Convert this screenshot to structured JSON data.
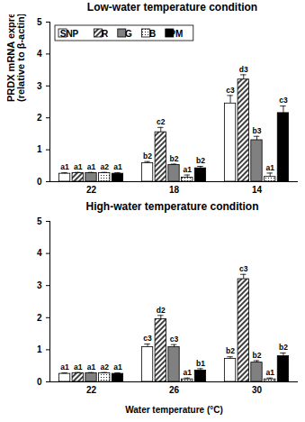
{
  "chart_data": [
    {
      "type": "bar",
      "title": "Low-water temperature condition",
      "categories": [
        "22",
        "18",
        "14"
      ],
      "y_label": "PRDX mRNA expression (relative to β-actin)",
      "ylim": [
        0,
        5
      ],
      "yticks": [
        0,
        1,
        2,
        3,
        4,
        5
      ],
      "grid": false,
      "legend": "upper left",
      "series": [
        {
          "name": "SNP",
          "color": "#ffffff",
          "values": [
            0.25,
            0.58,
            2.45
          ],
          "errors": [
            0.03,
            0.05,
            0.25
          ],
          "labels": [
            "a1",
            "b2",
            "c3"
          ]
        },
        {
          "name": "R",
          "color": "#ffffff",
          "values": [
            0.27,
            1.55,
            3.2
          ],
          "errors": [
            0.02,
            0.15,
            0.15
          ],
          "labels": [
            "a1",
            "c2",
            "d3"
          ]
        },
        {
          "name": "G",
          "color": "#808080",
          "values": [
            0.27,
            0.52,
            1.3
          ],
          "errors": [
            0.02,
            0.03,
            0.12
          ],
          "labels": [
            "a1",
            "b2",
            "b3"
          ]
        },
        {
          "name": "B",
          "color": "#ffffff",
          "values": [
            0.27,
            0.13,
            0.15
          ],
          "errors": [
            0.02,
            0.08,
            0.12
          ],
          "labels": [
            "a2",
            "a1",
            "a1"
          ]
        },
        {
          "name": "PM",
          "color": "#000000",
          "values": [
            0.25,
            0.42,
            2.15
          ],
          "errors": [
            0.03,
            0.06,
            0.22
          ],
          "labels": [
            "a1",
            "b2",
            "c3"
          ]
        }
      ]
    },
    {
      "type": "bar",
      "title": "High-water temperature condition",
      "categories": [
        "22",
        "26",
        "30"
      ],
      "x_label": "Water temperature (°C)",
      "ylim": [
        0,
        5
      ],
      "yticks": [
        0,
        1,
        2,
        3,
        4,
        5
      ],
      "grid": false,
      "series": [
        {
          "name": "SNP",
          "color": "#ffffff",
          "values": [
            0.25,
            1.08,
            0.72
          ],
          "errors": [
            0.03,
            0.1,
            0.06
          ],
          "labels": [
            "a1",
            "c3",
            "b2"
          ]
        },
        {
          "name": "R",
          "color": "#ffffff",
          "values": [
            0.27,
            1.95,
            3.2
          ],
          "errors": [
            0.02,
            0.12,
            0.15
          ],
          "labels": [
            "a1",
            "d2",
            "c3"
          ]
        },
        {
          "name": "G",
          "color": "#808080",
          "values": [
            0.27,
            1.08,
            0.6
          ],
          "errors": [
            0.02,
            0.08,
            0.06
          ],
          "labels": [
            "a1",
            "c3",
            "b2"
          ]
        },
        {
          "name": "B",
          "color": "#ffffff",
          "values": [
            0.27,
            0.08,
            0.08
          ],
          "errors": [
            0.02,
            0.04,
            0.04
          ],
          "labels": [
            "a2",
            "a1",
            "a1"
          ]
        },
        {
          "name": "PM",
          "color": "#000000",
          "values": [
            0.25,
            0.35,
            0.8
          ],
          "errors": [
            0.03,
            0.06,
            0.1
          ],
          "labels": [
            "a1",
            "b1",
            "b2"
          ]
        }
      ]
    }
  ]
}
